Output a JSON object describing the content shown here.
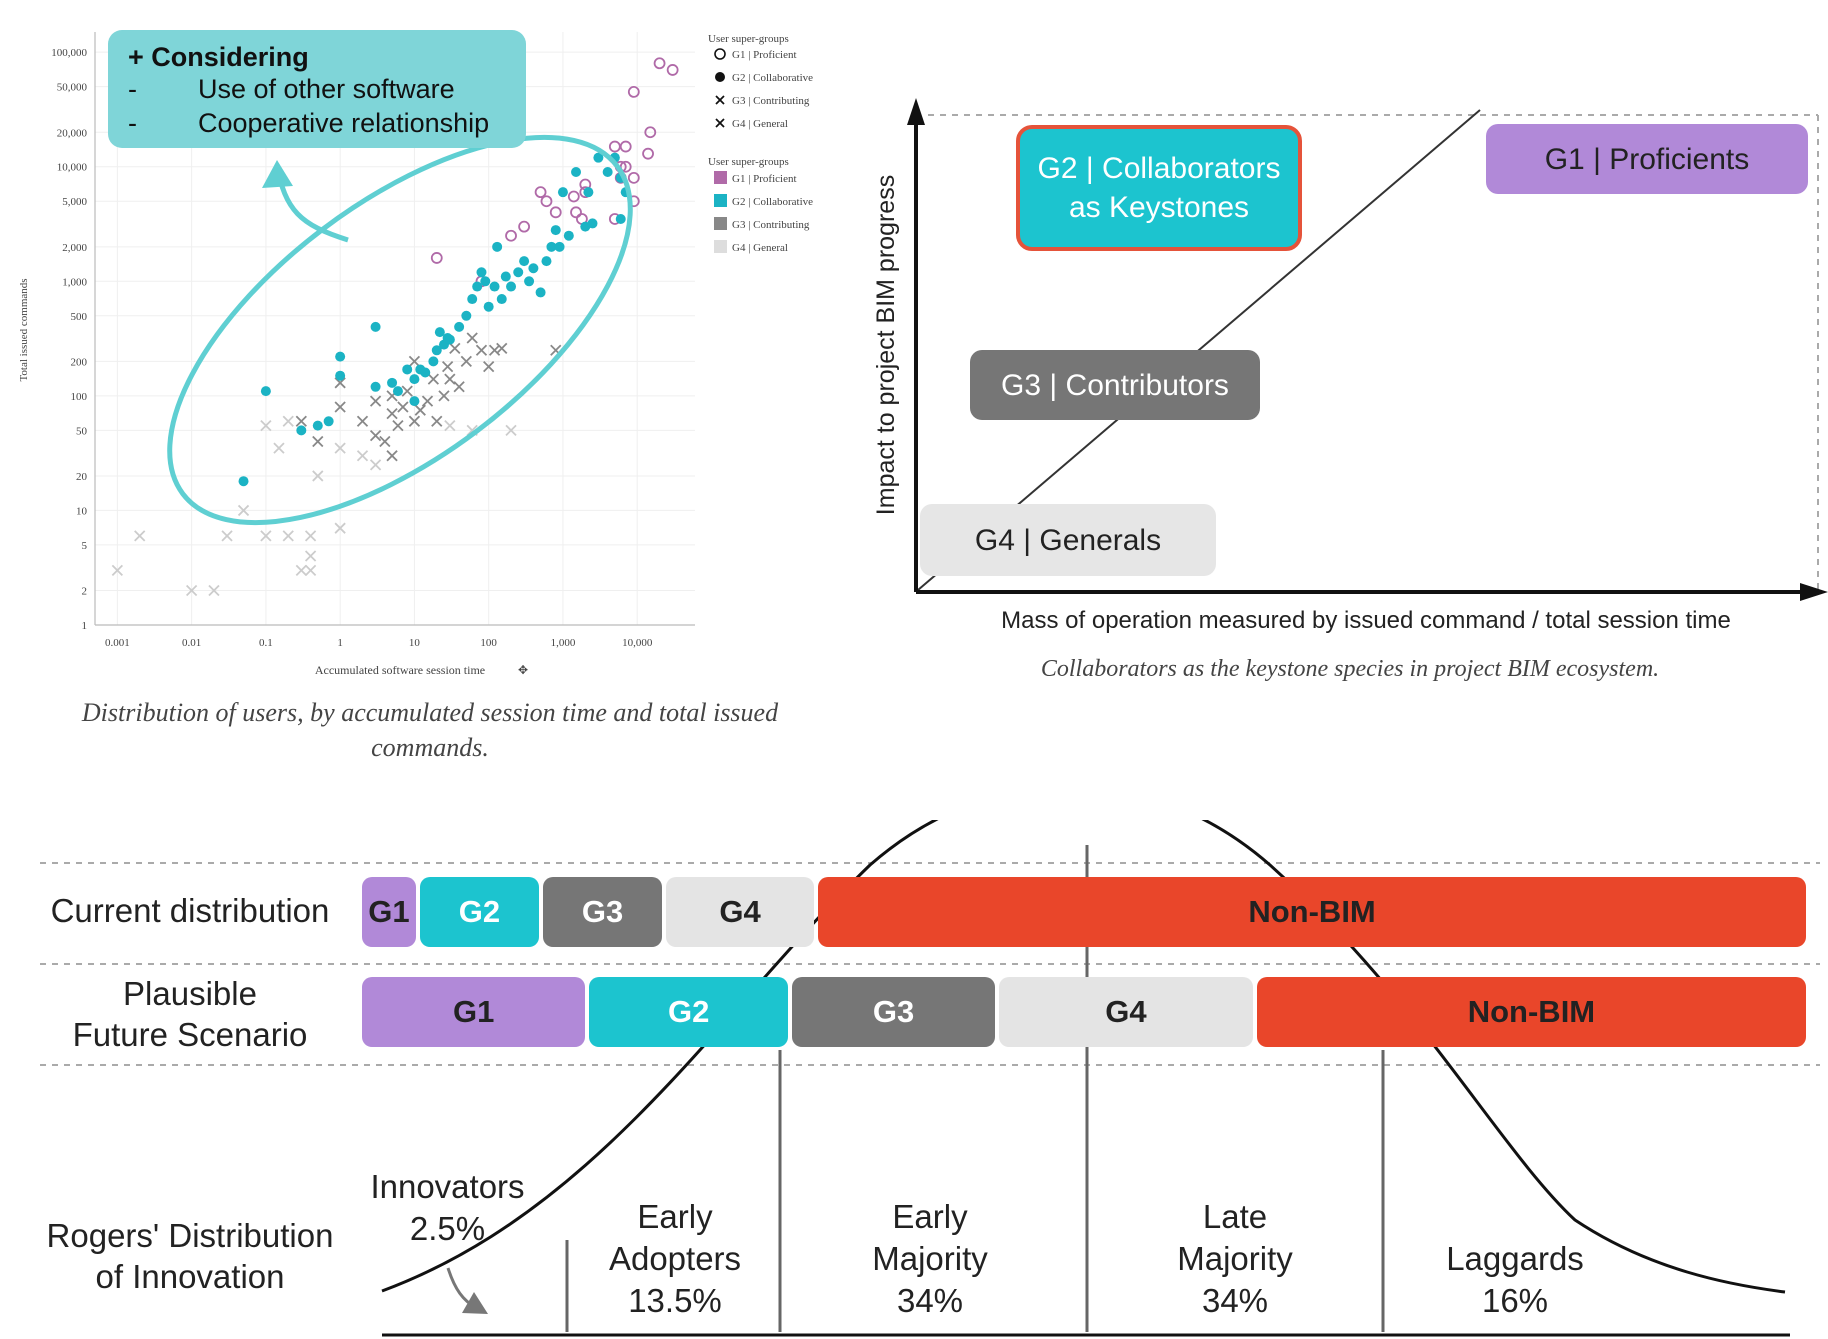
{
  "colors": {
    "G1": "#b189d8",
    "G2": "#1cc4cf",
    "G3": "#767676",
    "G4": "#e4e4e4",
    "NonBIM": "#e9462a",
    "highlight": "#e5533a",
    "scatter_g1": "#b06aa8",
    "scatter_g2": "#1bb3c4",
    "scatter_g3": "#888888",
    "scatter_g4": "#cccccc"
  },
  "chart_data": [
    {
      "type": "scatter",
      "title": "",
      "xlabel": "Accumulated software session time",
      "ylabel": "Total issued commands",
      "xscale": "log",
      "yscale": "log",
      "xlim": [
        0.0005,
        60000
      ],
      "ylim": [
        1,
        150000
      ],
      "xticks": [
        "0.001",
        "0.01",
        "0.1",
        "1",
        "10",
        "100",
        "1,000",
        "10,000"
      ],
      "xtick_values": [
        0.001,
        0.01,
        0.1,
        1,
        10,
        100,
        1000,
        10000
      ],
      "yticks": [
        "100,000",
        "50,000",
        "20,000",
        "10,000",
        "5,000",
        "2,000",
        "1,000",
        "500",
        "200",
        "100",
        "50",
        "20",
        "10",
        "5",
        "2",
        "1"
      ],
      "ytick_values": [
        100000,
        50000,
        20000,
        10000,
        5000,
        2000,
        1000,
        500,
        200,
        100,
        50,
        20,
        10,
        5,
        2,
        1
      ],
      "grid": true,
      "legend_position": "right",
      "legend_markers_title": "User super-groups",
      "legend_markers": [
        {
          "label": "G1 | Proficient",
          "marker": "circle-open"
        },
        {
          "label": "G2 | Collaborative",
          "marker": "circle-filled"
        },
        {
          "label": "G3 | Contributing",
          "marker": "x"
        },
        {
          "label": "G4 | General",
          "marker": "x"
        }
      ],
      "legend_colors_title": "User super-groups",
      "legend_colors": [
        {
          "label": "G1 | Proficient",
          "color": "#b06aa8"
        },
        {
          "label": "G2 | Collaborative",
          "color": "#1bb3c4"
        },
        {
          "label": "G3 | Contributing",
          "color": "#888888"
        },
        {
          "label": "G4 | General",
          "color": "#dddddd"
        }
      ],
      "callout": {
        "title": "+ Considering",
        "items": [
          "Use of other software",
          "Cooperative relationship"
        ]
      },
      "series": [
        {
          "name": "G1 | Proficient",
          "marker": "circle-open",
          "points": [
            [
              20000,
              80000
            ],
            [
              30000,
              70000
            ],
            [
              9000,
              45000
            ],
            [
              15000,
              20000
            ],
            [
              7000,
              15000
            ],
            [
              5000,
              15000
            ],
            [
              14000,
              13000
            ],
            [
              6000,
              10000
            ],
            [
              6000,
              8000
            ],
            [
              9000,
              8000
            ],
            [
              7000,
              10000
            ],
            [
              9000,
              5000
            ],
            [
              2000,
              7000
            ],
            [
              1400,
              5500
            ],
            [
              500,
              6000
            ],
            [
              600,
              5000
            ],
            [
              1800,
              3500
            ],
            [
              300,
              3000
            ],
            [
              200,
              2500
            ],
            [
              5000,
              3500
            ],
            [
              2000,
              6000
            ],
            [
              1500,
              4000
            ],
            [
              800,
              4000
            ],
            [
              20,
              1600
            ],
            [
              80,
              1000
            ]
          ]
        },
        {
          "name": "G2 | Collaborative",
          "marker": "circle-filled",
          "points": [
            [
              0.05,
              18
            ],
            [
              0.1,
              110
            ],
            [
              0.3,
              50
            ],
            [
              0.5,
              55
            ],
            [
              0.7,
              60
            ],
            [
              1,
              150
            ],
            [
              1,
              220
            ],
            [
              3,
              120
            ],
            [
              3,
              400
            ],
            [
              5,
              130
            ],
            [
              6,
              110
            ],
            [
              8,
              170
            ],
            [
              10,
              90
            ],
            [
              10,
              140
            ],
            [
              12,
              170
            ],
            [
              14,
              160
            ],
            [
              18,
              200
            ],
            [
              20,
              250
            ],
            [
              22,
              360
            ],
            [
              25,
              280
            ],
            [
              28,
              320
            ],
            [
              30,
              310
            ],
            [
              40,
              400
            ],
            [
              50,
              500
            ],
            [
              60,
              700
            ],
            [
              70,
              900
            ],
            [
              80,
              1200
            ],
            [
              90,
              1000
            ],
            [
              100,
              600
            ],
            [
              120,
              900
            ],
            [
              130,
              2000
            ],
            [
              150,
              700
            ],
            [
              170,
              1100
            ],
            [
              200,
              900
            ],
            [
              250,
              1200
            ],
            [
              300,
              1500
            ],
            [
              350,
              1000
            ],
            [
              400,
              1300
            ],
            [
              500,
              800
            ],
            [
              600,
              1500
            ],
            [
              700,
              2000
            ],
            [
              800,
              2800
            ],
            [
              900,
              2000
            ],
            [
              1000,
              6000
            ],
            [
              1200,
              2500
            ],
            [
              1500,
              9000
            ],
            [
              2000,
              3000
            ],
            [
              2200,
              6000
            ],
            [
              2500,
              3200
            ],
            [
              3000,
              12000
            ],
            [
              4000,
              9000
            ],
            [
              5000,
              12000
            ],
            [
              6000,
              8000
            ],
            [
              6000,
              3500
            ],
            [
              7000,
              6000
            ]
          ]
        },
        {
          "name": "G3 | Contributing",
          "marker": "x",
          "points": [
            [
              0.3,
              60
            ],
            [
              0.5,
              40
            ],
            [
              1,
              80
            ],
            [
              1,
              130
            ],
            [
              2,
              60
            ],
            [
              3,
              45
            ],
            [
              3,
              90
            ],
            [
              4,
              40
            ],
            [
              5,
              70
            ],
            [
              5,
              100
            ],
            [
              6,
              55
            ],
            [
              7,
              80
            ],
            [
              8,
              110
            ],
            [
              10,
              60
            ],
            [
              10,
              200
            ],
            [
              12,
              75
            ],
            [
              15,
              90
            ],
            [
              18,
              140
            ],
            [
              20,
              60
            ],
            [
              25,
              100
            ],
            [
              28,
              180
            ],
            [
              30,
              140
            ],
            [
              35,
              260
            ],
            [
              40,
              120
            ],
            [
              50,
              200
            ],
            [
              60,
              320
            ],
            [
              80,
              250
            ],
            [
              100,
              180
            ],
            [
              120,
              250
            ],
            [
              150,
              260
            ],
            [
              800,
              250
            ],
            [
              5,
              30
            ]
          ]
        },
        {
          "name": "G4 | General",
          "marker": "x",
          "points": [
            [
              0.001,
              3
            ],
            [
              0.002,
              6
            ],
            [
              0.01,
              2
            ],
            [
              0.02,
              2
            ],
            [
              0.03,
              6
            ],
            [
              0.05,
              10
            ],
            [
              0.1,
              55
            ],
            [
              0.15,
              35
            ],
            [
              0.2,
              60
            ],
            [
              0.1,
              6
            ],
            [
              0.2,
              6
            ],
            [
              0.3,
              3
            ],
            [
              0.4,
              6
            ],
            [
              0.4,
              4
            ],
            [
              0.4,
              3
            ],
            [
              0.5,
              20
            ],
            [
              1,
              7
            ],
            [
              1,
              35
            ],
            [
              2,
              30
            ],
            [
              3,
              25
            ],
            [
              5,
              30
            ],
            [
              10,
              60
            ],
            [
              30,
              55
            ],
            [
              60,
              50
            ],
            [
              200,
              50
            ]
          ]
        }
      ],
      "caption": "Distribution of users, by accumulated session time and total issued commands."
    },
    {
      "type": "diagram",
      "xlabel": "Mass of operation measured by issued command / total session time",
      "ylabel": "Impact to project BIM progress",
      "boxes": [
        {
          "group": "G1",
          "label": "G1 | Proficients"
        },
        {
          "group": "G2",
          "label_line1": "G2 | Collaborators",
          "label_line2": "as Keystones",
          "highlighted": true
        },
        {
          "group": "G3",
          "label": "G3 | Contributors"
        },
        {
          "group": "G4",
          "label": "G4 | Generals"
        }
      ],
      "caption": "Collaborators as the keystone species in project BIM ecosystem."
    },
    {
      "type": "stacked-bar",
      "rows": [
        {
          "label": "Current distribution",
          "label_lines": [
            "Current distribution"
          ],
          "segments": [
            {
              "group": "G1",
              "label": "G1",
              "share": 0.04
            },
            {
              "group": "G2",
              "label": "G2",
              "share": 0.085
            },
            {
              "group": "G3",
              "label": "G3",
              "share": 0.085
            },
            {
              "group": "G4",
              "label": "G4",
              "share": 0.105
            },
            {
              "group": "NonBIM",
              "label": "Non-BIM",
              "share": 0.685
            }
          ]
        },
        {
          "label": "Plausible Future Scenario",
          "label_lines": [
            "Plausible",
            "Future Scenario"
          ],
          "segments": [
            {
              "group": "G1",
              "label": "G1",
              "share": 0.157
            },
            {
              "group": "G2",
              "label": "G2",
              "share": 0.14
            },
            {
              "group": "G3",
              "label": "G3",
              "share": 0.143
            },
            {
              "group": "G4",
              "label": "G4",
              "share": 0.178
            },
            {
              "group": "NonBIM",
              "label": "Non-BIM",
              "share": 0.382
            }
          ]
        }
      ],
      "rogers": {
        "label_lines": [
          "Rogers' Distribution",
          "of Innovation"
        ],
        "categories": [
          {
            "lines": [
              "Innovators",
              "2.5%"
            ]
          },
          {
            "lines": [
              "Early",
              "Adopters",
              "13.5%"
            ]
          },
          {
            "lines": [
              "Early",
              "Majority",
              "34%"
            ]
          },
          {
            "lines": [
              "Late",
              "Majority",
              "34%"
            ]
          },
          {
            "lines": [
              "Laggards",
              "16%"
            ]
          }
        ]
      }
    }
  ]
}
